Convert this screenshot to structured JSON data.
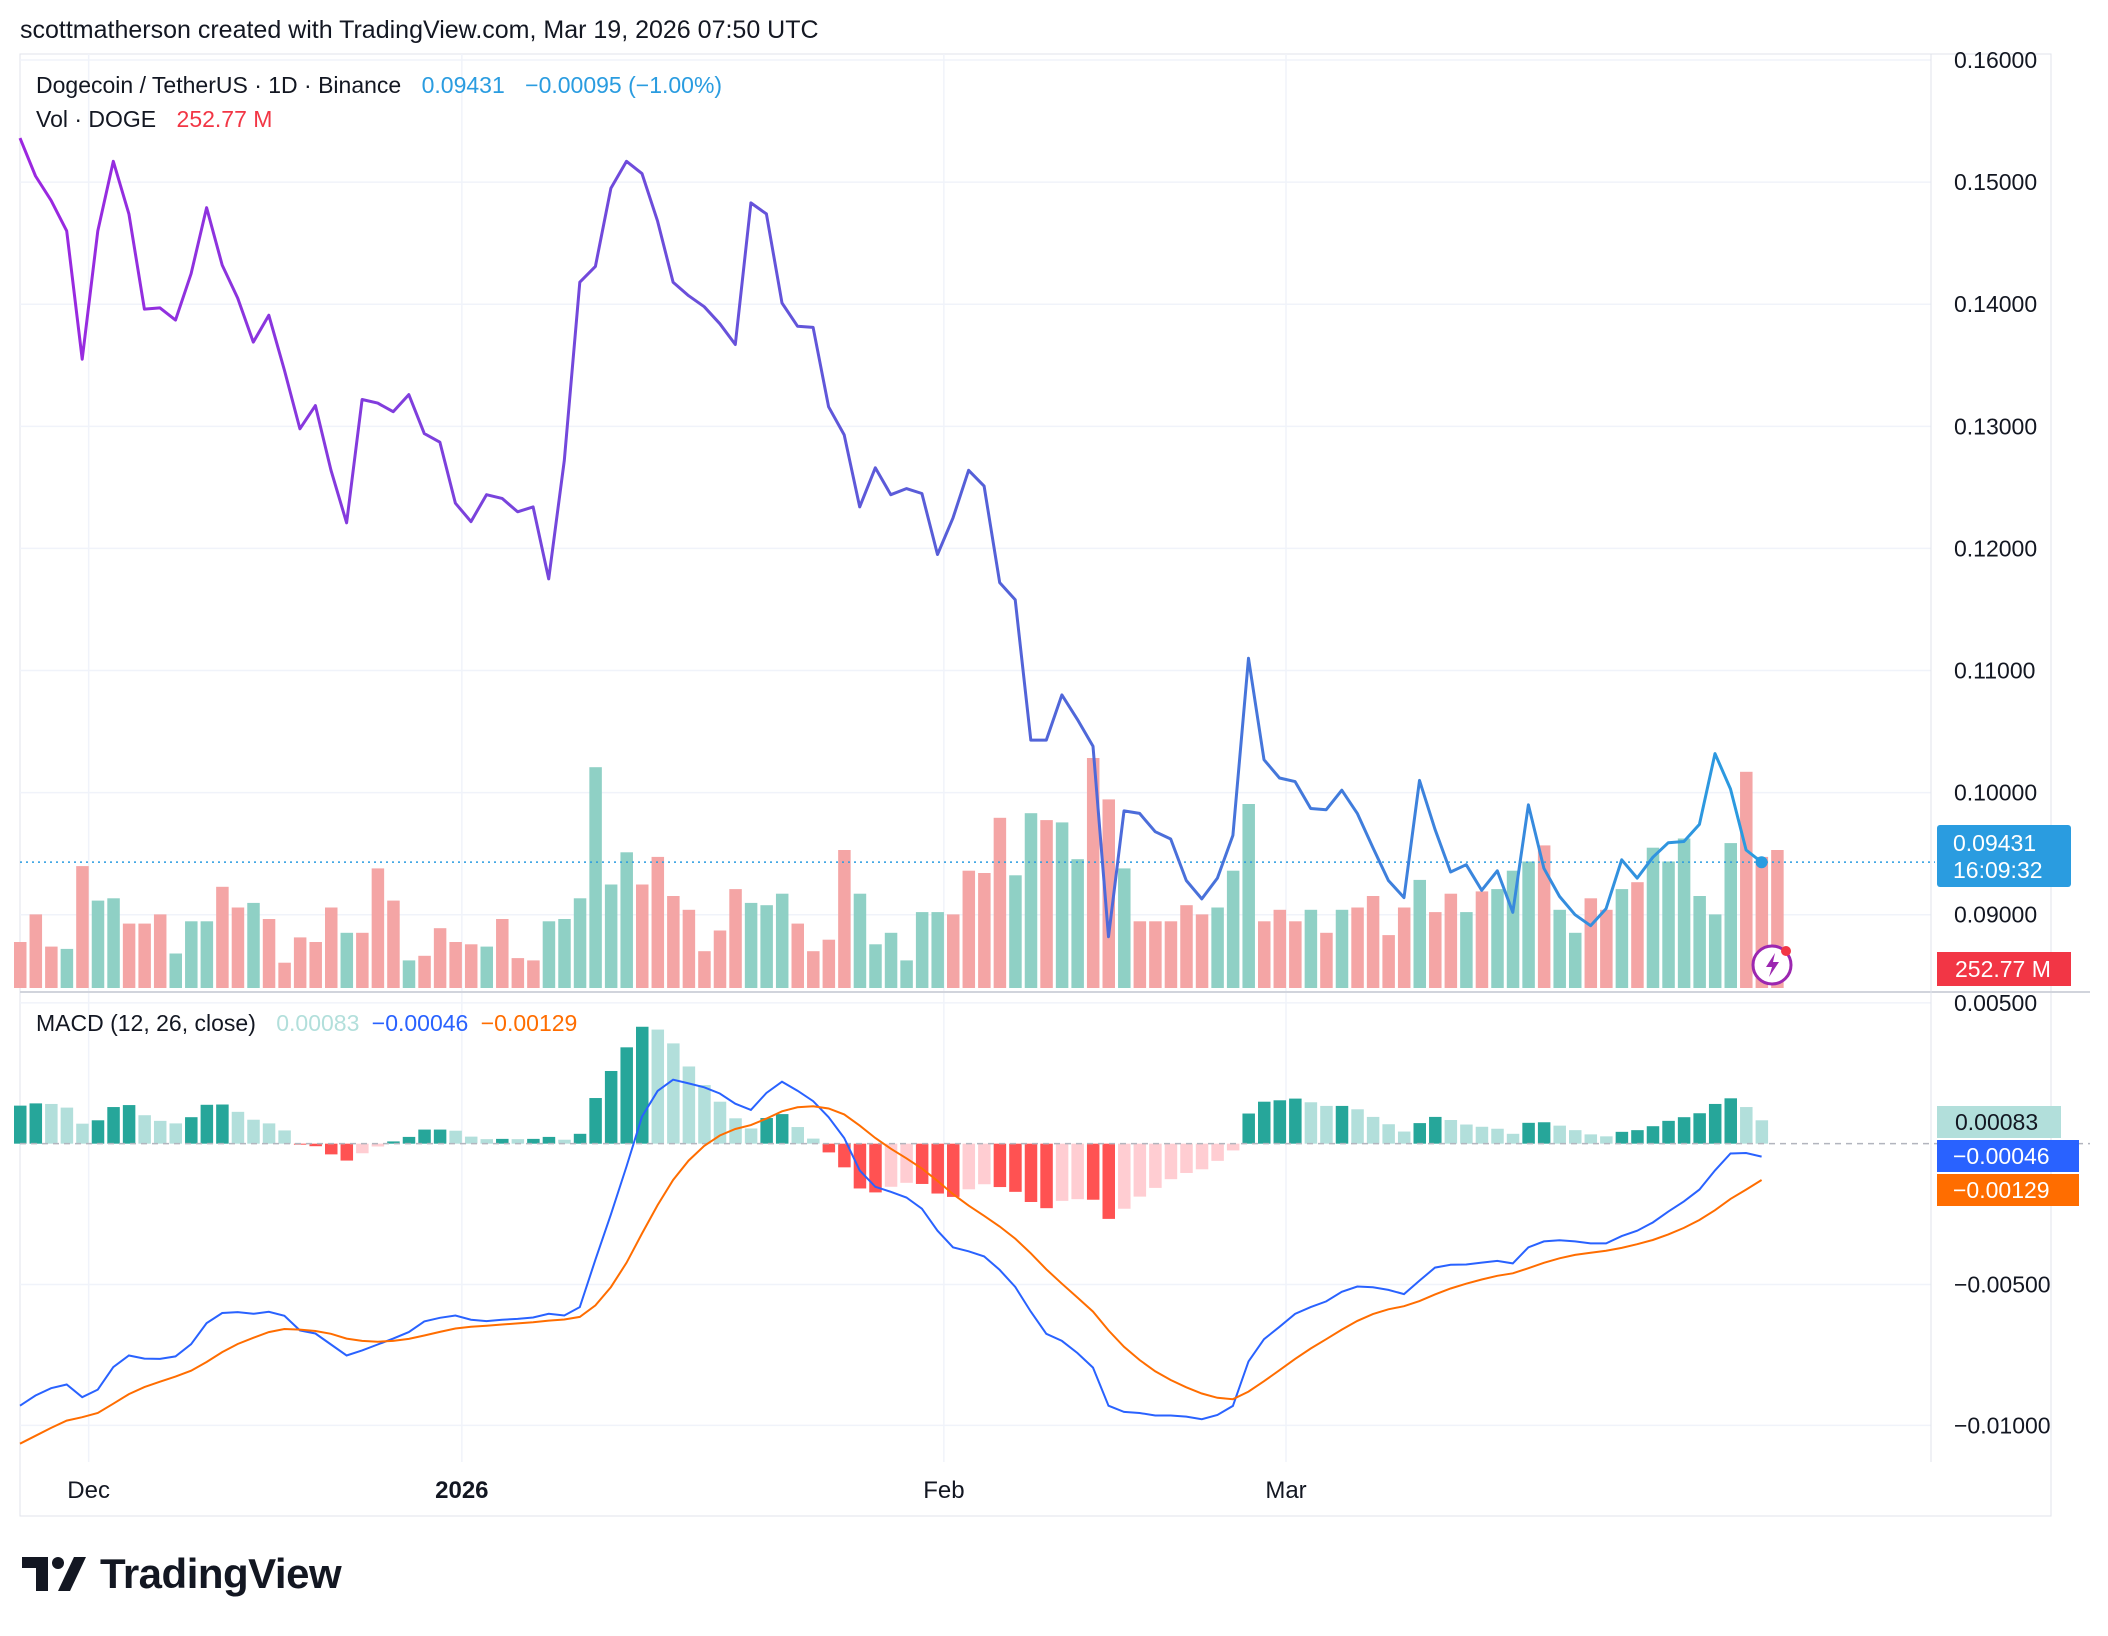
{
  "header": {
    "attribution": "scottmatherson created with TradingView.com, Mar 19, 2026 07:50 UTC"
  },
  "legend": {
    "symbol": "Dogecoin / TetherUS · 1D · Binance",
    "last": "0.09431",
    "change": "−0.00095 (−1.00%)",
    "vol_label": "Vol · DOGE",
    "vol_value": "252.77 M"
  },
  "macd_legend": {
    "label": "MACD (12, 26, close)",
    "hist": "0.00083",
    "macd": "−0.00046",
    "signal": "−0.00129"
  },
  "price_tag": {
    "price": "0.09431",
    "countdown": "16:09:32",
    "volume": "252.77 M"
  },
  "macd_tags": {
    "hist": "0.00083",
    "macd": "−0.00046",
    "signal": "−0.00129"
  },
  "brand": {
    "name": "TradingView"
  },
  "colors": {
    "price_purple": "#9c27e0",
    "price_blue": "#2a9ce0",
    "vol_up": "#8fd0c5",
    "vol_down": "#f4a5a5",
    "macd_line": "#2962ff",
    "signal_line": "#ff6d00",
    "hist_up_strong": "#26a69a",
    "hist_up_weak": "#b2dfdb",
    "hist_down_strong": "#ff5252",
    "hist_down_weak": "#ffcdd2"
  },
  "chart_data": [
    {
      "type": "line",
      "title": "Dogecoin / TetherUS · 1D · Binance",
      "x_labels": [
        "Dec",
        "2026",
        "Feb",
        "Mar"
      ],
      "y_ticks": [
        "0.16000",
        "0.15000",
        "0.14000",
        "0.13000",
        "0.12000",
        "0.11000",
        "0.10000",
        "0.09000"
      ],
      "ylim": [
        0.084,
        0.16
      ],
      "last_price": 0.09431,
      "close": [
        0.1536,
        0.1505,
        0.1485,
        0.146,
        0.1355,
        0.146,
        0.1517,
        0.1474,
        0.1396,
        0.1397,
        0.1387,
        0.1425,
        0.1479,
        0.1432,
        0.1405,
        0.1369,
        0.1391,
        0.1346,
        0.1298,
        0.1317,
        0.1264,
        0.1221,
        0.1322,
        0.1319,
        0.1312,
        0.1326,
        0.1294,
        0.1287,
        0.1237,
        0.1222,
        0.1244,
        0.1241,
        0.123,
        0.1234,
        0.1175,
        0.1272,
        0.1418,
        0.1431,
        0.1495,
        0.1517,
        0.1507,
        0.1468,
        0.1418,
        0.1407,
        0.1398,
        0.1384,
        0.1367,
        0.1483,
        0.1474,
        0.1401,
        0.1382,
        0.1381,
        0.1316,
        0.1293,
        0.1234,
        0.1266,
        0.1244,
        0.1249,
        0.1245,
        0.1195,
        0.1225,
        0.1264,
        0.1251,
        0.1172,
        0.1158,
        0.1043,
        0.1043,
        0.108,
        0.106,
        0.1038,
        0.0882,
        0.0985,
        0.0983,
        0.0968,
        0.0962,
        0.0928,
        0.0913,
        0.093,
        0.0965,
        0.111,
        0.1027,
        0.1012,
        0.1009,
        0.0987,
        0.0986,
        0.1002,
        0.0983,
        0.0955,
        0.0928,
        0.0914,
        0.101,
        0.097,
        0.0935,
        0.0941,
        0.092,
        0.0936,
        0.0902,
        0.099,
        0.0938,
        0.0915,
        0.09,
        0.0891,
        0.0905,
        0.0945,
        0.093,
        0.0947,
        0.0959,
        0.096,
        0.0974,
        0.1032,
        0.1003,
        0.0953,
        0.0943
      ],
      "volume_direction": [
        0,
        0,
        0,
        1,
        0,
        1,
        1,
        0,
        0,
        0,
        1,
        1,
        1,
        0,
        0,
        1,
        0,
        0,
        0,
        0,
        0,
        1,
        0,
        0,
        0,
        1,
        0,
        0,
        0,
        0,
        1,
        0,
        0,
        0,
        1,
        1,
        1,
        1,
        1,
        1,
        0,
        0,
        0,
        0,
        0,
        0,
        0,
        1,
        1,
        1,
        0,
        0,
        0,
        0,
        1,
        1,
        1,
        1,
        1,
        1,
        0,
        0,
        0,
        0,
        1,
        1,
        0,
        1,
        1,
        0,
        0,
        1,
        0,
        0,
        0,
        0,
        0,
        1,
        1,
        1,
        0,
        0,
        0,
        1,
        0,
        1,
        0,
        0,
        0,
        0,
        1,
        0,
        0,
        1,
        0,
        1,
        1,
        1,
        0,
        1,
        1,
        0,
        0,
        1,
        0,
        1,
        1,
        1,
        1,
        1,
        1,
        0,
        0
      ],
      "volume_relative": [
        0.2,
        0.32,
        0.18,
        0.17,
        0.53,
        0.38,
        0.39,
        0.28,
        0.28,
        0.32,
        0.15,
        0.29,
        0.29,
        0.44,
        0.35,
        0.37,
        0.3,
        0.11,
        0.22,
        0.2,
        0.35,
        0.24,
        0.24,
        0.52,
        0.38,
        0.12,
        0.14,
        0.26,
        0.2,
        0.19,
        0.18,
        0.3,
        0.13,
        0.12,
        0.29,
        0.3,
        0.39,
        0.96,
        0.45,
        0.59,
        0.45,
        0.57,
        0.4,
        0.34,
        0.16,
        0.25,
        0.43,
        0.37,
        0.36,
        0.41,
        0.28,
        0.16,
        0.21,
        0.6,
        0.41,
        0.19,
        0.24,
        0.12,
        0.33,
        0.33,
        0.32,
        0.51,
        0.5,
        0.74,
        0.49,
        0.76,
        0.73,
        0.72,
        0.56,
        1.0,
        0.82,
        0.52,
        0.29,
        0.29,
        0.29,
        0.36,
        0.32,
        0.35,
        0.51,
        0.8,
        0.29,
        0.34,
        0.29,
        0.34,
        0.24,
        0.34,
        0.35,
        0.4,
        0.23,
        0.35,
        0.47,
        0.33,
        0.41,
        0.33,
        0.42,
        0.43,
        0.51,
        0.55,
        0.62,
        0.34,
        0.24,
        0.39,
        0.34,
        0.43,
        0.46,
        0.61,
        0.55,
        0.65,
        0.4,
        0.32,
        0.63,
        0.94,
        0.57,
        0.6
      ]
    },
    {
      "type": "bar",
      "title": "MACD (12, 26, close)",
      "y_ticks": [
        "0.00500",
        "−0.00500",
        "−0.01000"
      ],
      "ylim": [
        -0.0113,
        0.0051
      ],
      "macd_line": [
        -0.0093,
        -0.00894,
        -0.00868,
        -0.00855,
        -0.009,
        -0.00873,
        -0.00793,
        -0.00752,
        -0.00763,
        -0.00764,
        -0.00755,
        -0.00712,
        -0.00637,
        -0.00601,
        -0.00598,
        -0.00604,
        -0.00597,
        -0.00611,
        -0.00663,
        -0.00674,
        -0.00713,
        -0.00752,
        -0.00734,
        -0.00713,
        -0.00692,
        -0.00669,
        -0.00631,
        -0.00618,
        -0.0061,
        -0.00625,
        -0.0063,
        -0.00625,
        -0.00622,
        -0.00617,
        -0.00604,
        -0.0061,
        -0.0058,
        -0.00412,
        -0.00251,
        -0.00081,
        0.00096,
        0.00187,
        0.00227,
        0.00214,
        0.002,
        0.00178,
        0.00142,
        0.0012,
        0.0018,
        0.0022,
        0.00188,
        0.00151,
        0.00094,
        0.0002,
        -0.00095,
        -0.00153,
        -0.00171,
        -0.00191,
        -0.00231,
        -0.00309,
        -0.00368,
        -0.00382,
        -0.004,
        -0.00448,
        -0.00508,
        -0.00596,
        -0.00675,
        -0.007,
        -0.00743,
        -0.00795,
        -0.0093,
        -0.00952,
        -0.00956,
        -0.00965,
        -0.00965,
        -0.00969,
        -0.00978,
        -0.00963,
        -0.00931,
        -0.00773,
        -0.00694,
        -0.0065,
        -0.00604,
        -0.0058,
        -0.0056,
        -0.00526,
        -0.00507,
        -0.0051,
        -0.00519,
        -0.00534,
        -0.00486,
        -0.0044,
        -0.0043,
        -0.00429,
        -0.00422,
        -0.00416,
        -0.00425,
        -0.00368,
        -0.00347,
        -0.00343,
        -0.00347,
        -0.00354,
        -0.00354,
        -0.00328,
        -0.00309,
        -0.0028,
        -0.00241,
        -0.00205,
        -0.00163,
        -0.00095,
        -0.00035,
        -0.00033,
        -0.00046
      ],
      "signal_line": [
        -0.01065,
        -0.01037,
        -0.01009,
        -0.00983,
        -0.00971,
        -0.00956,
        -0.00923,
        -0.00889,
        -0.00864,
        -0.00845,
        -0.00827,
        -0.00806,
        -0.00775,
        -0.0074,
        -0.00711,
        -0.00689,
        -0.00669,
        -0.00658,
        -0.0066,
        -0.00665,
        -0.00675,
        -0.00692,
        -0.007,
        -0.00703,
        -0.007,
        -0.00693,
        -0.00681,
        -0.00668,
        -0.00656,
        -0.0065,
        -0.00646,
        -0.00642,
        -0.00638,
        -0.00634,
        -0.00628,
        -0.00624,
        -0.00615,
        -0.00574,
        -0.00509,
        -0.00423,
        -0.00319,
        -0.00218,
        -0.00129,
        -0.0006,
        -8e-05,
        0.00029,
        0.00052,
        0.00066,
        0.00089,
        0.00115,
        0.00129,
        0.00133,
        0.00125,
        0.00104,
        0.00064,
        0.0002,
        -0.00018,
        -0.00052,
        -0.00088,
        -0.00132,
        -0.00179,
        -0.0022,
        -0.00256,
        -0.00294,
        -0.00337,
        -0.00389,
        -0.00446,
        -0.00497,
        -0.00546,
        -0.00596,
        -0.00663,
        -0.00721,
        -0.00768,
        -0.00808,
        -0.00839,
        -0.00865,
        -0.00887,
        -0.00902,
        -0.00907,
        -0.0088,
        -0.00843,
        -0.00804,
        -0.00764,
        -0.00727,
        -0.00694,
        -0.0066,
        -0.00629,
        -0.00605,
        -0.00588,
        -0.00577,
        -0.00559,
        -0.00535,
        -0.00514,
        -0.00497,
        -0.00482,
        -0.00469,
        -0.0046,
        -0.00442,
        -0.00423,
        -0.00407,
        -0.00395,
        -0.00387,
        -0.0038,
        -0.0037,
        -0.00357,
        -0.00342,
        -0.00322,
        -0.00299,
        -0.00271,
        -0.00236,
        -0.00196,
        -0.00163,
        -0.00129
      ],
      "histogram": [
        0.00135,
        0.00143,
        0.00141,
        0.00128,
        0.00071,
        0.00083,
        0.0013,
        0.00137,
        0.00101,
        0.00081,
        0.00072,
        0.00094,
        0.00138,
        0.00139,
        0.00113,
        0.00085,
        0.00072,
        0.00047,
        -3e-05,
        -9e-05,
        -0.00038,
        -0.0006,
        -0.00034,
        -0.0001,
        8e-05,
        0.00024,
        0.0005,
        0.0005,
        0.00046,
        0.00025,
        0.00016,
        0.00017,
        0.00016,
        0.00017,
        0.00024,
        0.00014,
        0.00035,
        0.00162,
        0.00258,
        0.00342,
        0.00415,
        0.00405,
        0.00356,
        0.00274,
        0.00208,
        0.00149,
        0.0009,
        0.00054,
        0.00091,
        0.00105,
        0.00059,
        0.00018,
        -0.00031,
        -0.00084,
        -0.00159,
        -0.00173,
        -0.00153,
        -0.00139,
        -0.00143,
        -0.00177,
        -0.00189,
        -0.00162,
        -0.00144,
        -0.00154,
        -0.00171,
        -0.00207,
        -0.00229,
        -0.00203,
        -0.00197,
        -0.00199,
        -0.00267,
        -0.00231,
        -0.00188,
        -0.00157,
        -0.00126,
        -0.00104,
        -0.00091,
        -0.00061,
        -0.00024,
        0.00107,
        0.00149,
        0.00154,
        0.0016,
        0.00147,
        0.00134,
        0.00134,
        0.00122,
        0.00095,
        0.00069,
        0.00043,
        0.00073,
        0.00095,
        0.00084,
        0.00068,
        0.0006,
        0.00053,
        0.00035,
        0.00074,
        0.00076,
        0.00064,
        0.00048,
        0.00033,
        0.00026,
        0.00042,
        0.00048,
        0.00062,
        0.00081,
        0.00094,
        0.00108,
        0.00141,
        0.00161,
        0.0013,
        0.00083
      ]
    }
  ]
}
